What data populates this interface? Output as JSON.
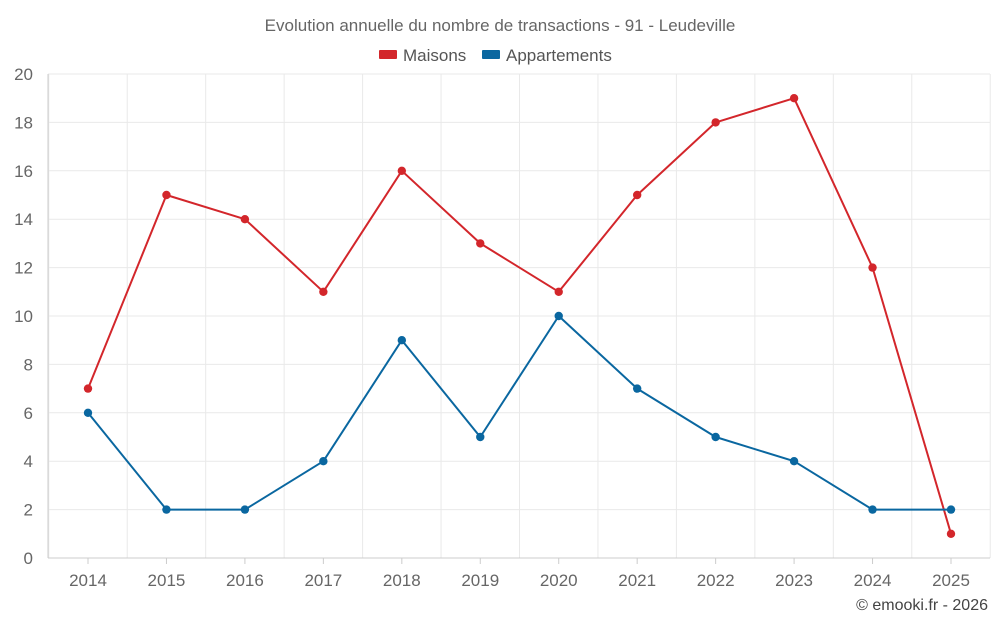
{
  "chart_data": {
    "type": "line",
    "title": "Evolution annuelle du nombre de transactions - 91 - Leudeville",
    "categories": [
      "2014",
      "2015",
      "2016",
      "2017",
      "2018",
      "2019",
      "2020",
      "2021",
      "2022",
      "2023",
      "2024",
      "2025"
    ],
    "series": [
      {
        "name": "Maisons",
        "color": "#d3262b",
        "values": [
          7,
          15,
          14,
          11,
          16,
          13,
          11,
          15,
          18,
          19,
          12,
          1
        ]
      },
      {
        "name": "Appartements",
        "color": "#0a67a0",
        "values": [
          6,
          2,
          2,
          4,
          9,
          5,
          10,
          7,
          5,
          4,
          2,
          2
        ]
      }
    ],
    "ylim": [
      0,
      20
    ],
    "yticks": [
      0,
      2,
      4,
      6,
      8,
      10,
      12,
      14,
      16,
      18,
      20
    ],
    "grid": true,
    "legend": "top-center",
    "xlabel": "",
    "ylabel": ""
  },
  "credit": "© emooki.fr - 2026"
}
